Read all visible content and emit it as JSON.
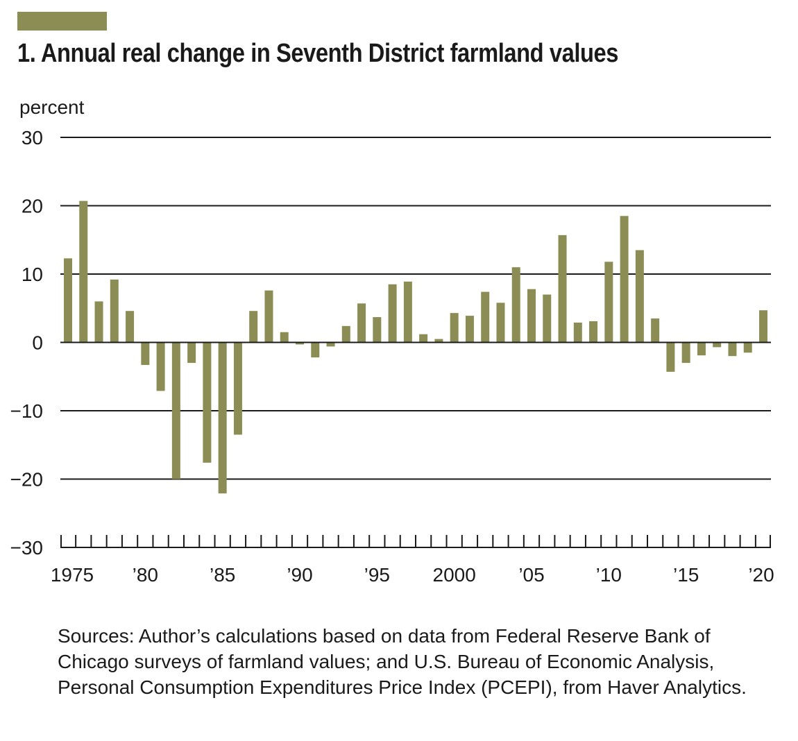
{
  "colors": {
    "bar": "#8b8d55",
    "axis": "#1a1a1a"
  },
  "chart_data": {
    "type": "bar",
    "title": "1. Annual real change in Seventh District farmland values",
    "ylabel": "percent",
    "xlabel": "",
    "ylim": [
      -30,
      30
    ],
    "yticks": [
      30,
      20,
      10,
      0,
      -10,
      -20,
      -30
    ],
    "ytick_labels": [
      "30",
      "20",
      "10",
      "0",
      "−10",
      "−20",
      "−30"
    ],
    "grid": true,
    "legend": "none",
    "categories": [
      1975,
      1976,
      1977,
      1978,
      1979,
      1980,
      1981,
      1982,
      1983,
      1984,
      1985,
      1986,
      1987,
      1988,
      1989,
      1990,
      1991,
      1992,
      1993,
      1994,
      1995,
      1996,
      1997,
      1998,
      1999,
      2000,
      2001,
      2002,
      2003,
      2004,
      2005,
      2006,
      2007,
      2008,
      2009,
      2010,
      2011,
      2012,
      2013,
      2014,
      2015,
      2016,
      2017,
      2018,
      2019,
      2020
    ],
    "values": [
      12.3,
      20.7,
      6.0,
      9.2,
      4.6,
      -3.3,
      -7.1,
      -20.0,
      -3.0,
      -17.6,
      -22.1,
      -13.5,
      4.6,
      7.6,
      1.5,
      -0.3,
      -2.2,
      -0.6,
      2.4,
      5.7,
      3.7,
      8.5,
      8.9,
      1.2,
      0.5,
      4.3,
      3.9,
      7.4,
      5.8,
      11.0,
      7.8,
      7.0,
      15.7,
      2.9,
      3.1,
      11.8,
      18.5,
      13.5,
      3.5,
      -4.3,
      -3.0,
      -1.9,
      -0.7,
      -2.0,
      -1.5,
      4.7
    ],
    "xtick_labels": [
      {
        "year": 1975,
        "label": "1975"
      },
      {
        "year": 1980,
        "label": "’80"
      },
      {
        "year": 1985,
        "label": "’85"
      },
      {
        "year": 1990,
        "label": "’90"
      },
      {
        "year": 1995,
        "label": "’95"
      },
      {
        "year": 2000,
        "label": "2000"
      },
      {
        "year": 2005,
        "label": "’05"
      },
      {
        "year": 2010,
        "label": "’10"
      },
      {
        "year": 2015,
        "label": "’15"
      },
      {
        "year": 2020,
        "label": "’20"
      }
    ]
  },
  "source_note": "Sources: Author’s calculations based on data from Federal Reserve Bank of Chicago surveys of farmland values; and U.S. Bureau of Economic Analysis, Personal Consumption Expenditures Price Index (PCEPI), from Haver Analytics."
}
